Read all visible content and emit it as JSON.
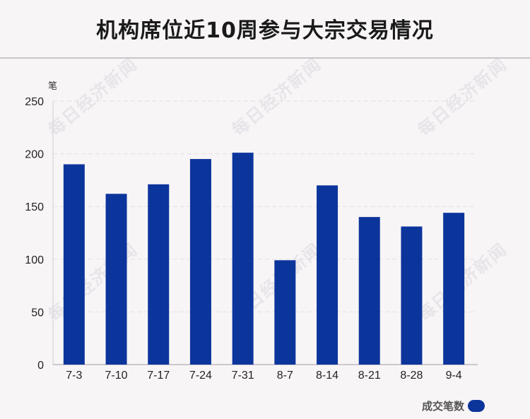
{
  "title": "机构席位近10周参与大宗交易情况",
  "watermark": "每日经济新闻",
  "legend": {
    "label": "成交笔数",
    "color": "#0c359c"
  },
  "chart_data": {
    "type": "bar",
    "categories": [
      "7-3",
      "7-10",
      "7-17",
      "7-24",
      "7-31",
      "8-7",
      "8-14",
      "8-21",
      "8-28",
      "9-4"
    ],
    "series": [
      {
        "name": "成交笔数",
        "values": [
          190,
          162,
          171,
          195,
          201,
          99,
          170,
          140,
          131,
          144
        ]
      }
    ],
    "title": "机构席位近10周参与大宗交易情况",
    "ylabel": "笔",
    "ylim": [
      0,
      250
    ],
    "yticks": [
      0,
      50,
      100,
      150,
      200,
      250
    ],
    "grid": true,
    "legend": "bottom-right",
    "bar_color": "#0c359c"
  }
}
